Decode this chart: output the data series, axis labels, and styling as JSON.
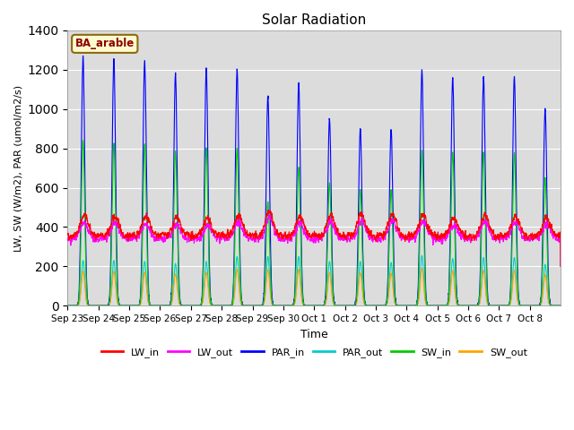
{
  "title": "Solar Radiation",
  "xlabel": "Time",
  "ylabel": "LW, SW (W/m2), PAR (umol/m2/s)",
  "annotation": "BA_arable",
  "annotation_color": "#8B0000",
  "annotation_bg": "#FFFACD",
  "annotation_border": "#8B6914",
  "ylim": [
    0,
    1400
  ],
  "yticks": [
    0,
    200,
    400,
    600,
    800,
    1000,
    1200,
    1400
  ],
  "colors": {
    "LW_in": "#FF0000",
    "LW_out": "#FF00FF",
    "PAR_in": "#0000FF",
    "PAR_out": "#00CCCC",
    "SW_in": "#00CC00",
    "SW_out": "#FFA500"
  },
  "n_days": 16,
  "PAR_peaks": [
    1265,
    1255,
    1245,
    1180,
    1210,
    1200,
    1065,
    1135,
    950,
    900,
    895,
    1195,
    1160,
    1165,
    1165,
    1000
  ],
  "SW_peaks": [
    840,
    825,
    820,
    785,
    800,
    800,
    530,
    705,
    625,
    590,
    590,
    790,
    780,
    780,
    775,
    650
  ],
  "PAR_out_peaks": [
    230,
    230,
    225,
    215,
    225,
    250,
    250,
    250,
    225,
    225,
    220,
    255,
    240,
    245,
    245,
    210
  ],
  "SW_out_peaks": [
    175,
    175,
    170,
    162,
    170,
    185,
    183,
    185,
    167,
    167,
    165,
    190,
    178,
    180,
    180,
    158
  ],
  "LW_base": 355,
  "LW_out_base": 340,
  "LW_in_day_bump": [
    105,
    100,
    100,
    90,
    90,
    105,
    125,
    100,
    105,
    110,
    115,
    105,
    90,
    105,
    105,
    90
  ],
  "LW_out_day_bump": [
    85,
    80,
    80,
    70,
    70,
    85,
    110,
    80,
    85,
    90,
    95,
    85,
    70,
    85,
    85,
    70
  ],
  "background_color": "#DCDCDC",
  "grid_color": "#FFFFFF",
  "fig_bg": "#FFFFFF",
  "linewidth": 0.8,
  "bell_sigma": 1.3,
  "lw_sigma": 3.0,
  "tick_labels": [
    "Sep 23",
    "Sep 24",
    "Sep 25",
    "Sep 26",
    "Sep 27",
    "Sep 28",
    "Sep 29",
    "Sep 30",
    "Oct 1",
    "Oct 2",
    "Oct 3",
    "Oct 4",
    "Oct 5",
    "Oct 6",
    "Oct 7",
    "Oct 8"
  ]
}
